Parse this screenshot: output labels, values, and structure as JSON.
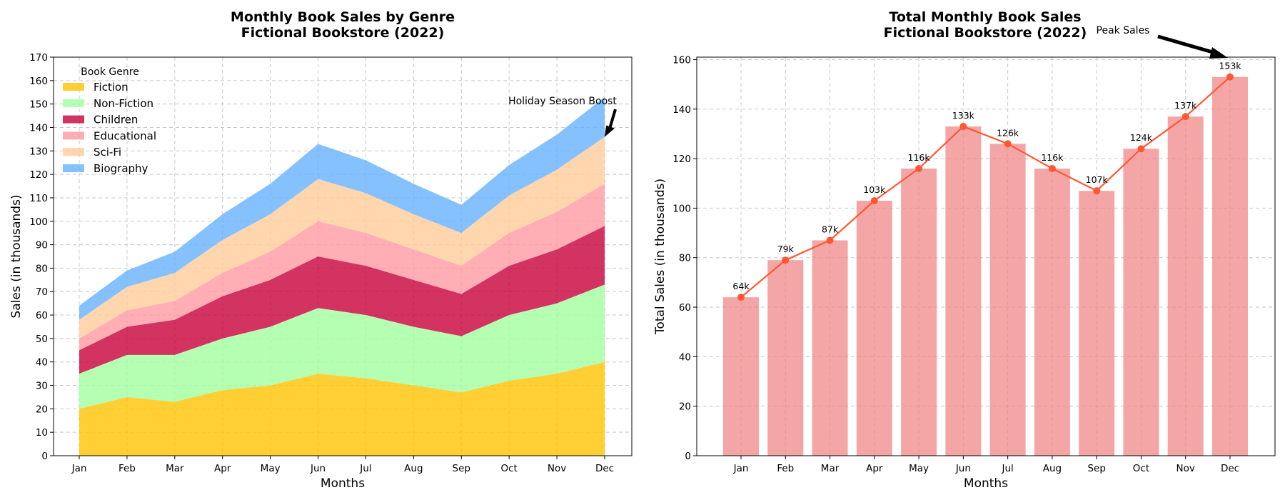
{
  "chart_data": [
    {
      "type": "area",
      "title": "Monthly Book Sales by Genre\nFictional Bookstore (2022)",
      "xlabel": "Months",
      "ylabel": "Sales (in thousands)",
      "ylim": [
        0,
        170
      ],
      "yticks": [
        0,
        10,
        20,
        30,
        40,
        50,
        60,
        70,
        80,
        90,
        100,
        110,
        120,
        130,
        140,
        150,
        160,
        170
      ],
      "categories": [
        "Jan",
        "Feb",
        "Mar",
        "Apr",
        "May",
        "Jun",
        "Jul",
        "Aug",
        "Sep",
        "Oct",
        "Nov",
        "Dec"
      ],
      "stacked": true,
      "grid": true,
      "legend_title": "Book Genre",
      "legend_position": "top-left",
      "series": [
        {
          "name": "Fiction",
          "color": "#FFC300",
          "values": [
            20,
            25,
            23,
            28,
            30,
            35,
            33,
            30,
            27,
            32,
            35,
            40
          ]
        },
        {
          "name": "Non-Fiction",
          "color": "#A3FF9F",
          "values": [
            15,
            18,
            20,
            22,
            25,
            28,
            27,
            25,
            24,
            28,
            30,
            33
          ]
        },
        {
          "name": "Children",
          "color": "#C70039",
          "values": [
            10,
            12,
            15,
            18,
            20,
            22,
            21,
            20,
            18,
            21,
            23,
            25
          ]
        },
        {
          "name": "Educational",
          "color": "#FF9AA2",
          "values": [
            5,
            7,
            8,
            10,
            12,
            15,
            14,
            13,
            12,
            14,
            16,
            18
          ]
        },
        {
          "name": "Sci-Fi",
          "color": "#FFCC99",
          "values": [
            8,
            10,
            12,
            14,
            16,
            18,
            17,
            15,
            14,
            16,
            18,
            20
          ]
        },
        {
          "name": "Biography",
          "color": "#66B2FF",
          "values": [
            6,
            7,
            9,
            11,
            13,
            15,
            14,
            13,
            12,
            13,
            15,
            17
          ]
        }
      ],
      "annotation": {
        "text": "Holiday Season Boost",
        "x": "Dec",
        "y": 136
      }
    },
    {
      "type": "bar",
      "title": "Total Monthly Book Sales\nFictional Bookstore (2022)",
      "xlabel": "Months",
      "ylabel": "Total Sales (in thousands)",
      "ylim": [
        0,
        161
      ],
      "yticks": [
        0,
        20,
        40,
        60,
        80,
        100,
        120,
        140,
        160
      ],
      "categories": [
        "Jan",
        "Feb",
        "Mar",
        "Apr",
        "May",
        "Jun",
        "Jul",
        "Aug",
        "Sep",
        "Oct",
        "Nov",
        "Dec"
      ],
      "values": [
        64,
        79,
        87,
        103,
        116,
        133,
        126,
        116,
        107,
        124,
        137,
        153
      ],
      "data_labels": [
        "64k",
        "79k",
        "87k",
        "103k",
        "116k",
        "133k",
        "126k",
        "116k",
        "107k",
        "124k",
        "137k",
        "153k"
      ],
      "bar_color": "#F08080",
      "line_color": "#FF5733",
      "grid": true,
      "annotation": {
        "text": "Peak Sales",
        "x": "Dec",
        "y": 153
      }
    }
  ]
}
